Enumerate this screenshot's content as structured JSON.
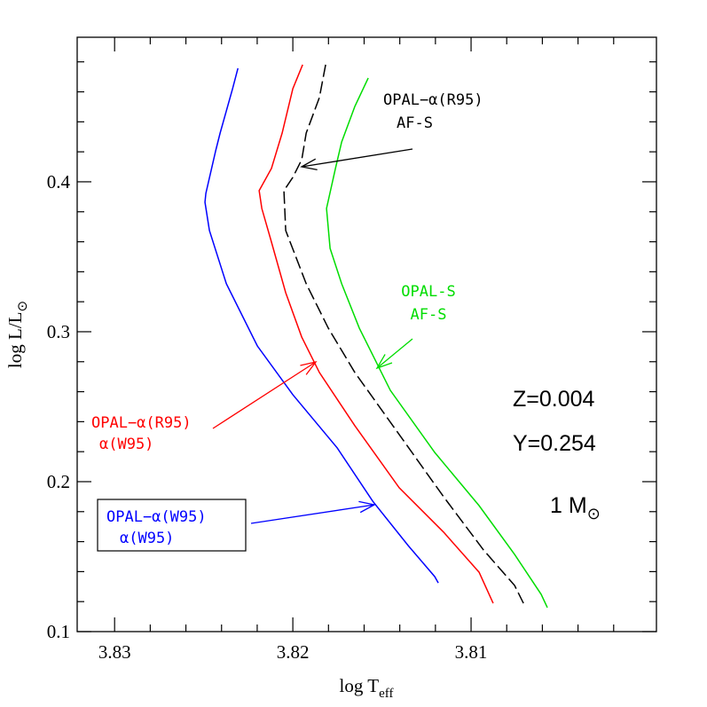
{
  "chart_data": {
    "type": "line",
    "x_label": [
      "log T",
      "eff"
    ],
    "y_label": [
      "log L/L",
      "⊙"
    ],
    "xlim": [
      3.8321,
      3.7996
    ],
    "ylim": [
      0.1,
      0.4964
    ],
    "xticks": [
      3.83,
      3.82,
      3.81
    ],
    "yticks": [
      0.1,
      0.2,
      0.3,
      0.4
    ],
    "xminorticks": [
      3.828,
      3.826,
      3.824,
      3.822,
      3.818,
      3.816,
      3.814,
      3.812,
      3.808,
      3.806,
      3.804,
      3.802
    ],
    "yminorticks": [
      0.12,
      0.14,
      0.16,
      0.18,
      0.22,
      0.24,
      0.26,
      0.28,
      0.32,
      0.34,
      0.36,
      0.38,
      0.42,
      0.44,
      0.46,
      0.48
    ],
    "series": [
      {
        "color": "#0000ff",
        "x": [
          3.82308,
          3.82338,
          3.82408,
          3.82433,
          3.82488,
          3.82493,
          3.82468,
          3.82373,
          3.82199,
          3.82,
          3.81751,
          3.81552,
          3.81353,
          3.81204,
          3.81184
        ],
        "values": [
          0.4757,
          0.4621,
          0.4325,
          0.4207,
          0.3923,
          0.3864,
          0.3675,
          0.332,
          0.2905,
          0.258,
          0.2225,
          0.187,
          0.1574,
          0.1367,
          0.1325
        ]
      },
      {
        "color": "#ff0000",
        "x": [
          3.81945,
          3.82,
          3.8206,
          3.8212,
          3.82189,
          3.82174,
          3.82124,
          3.8204,
          3.8195,
          3.81851,
          3.81652,
          3.81403,
          3.81154,
          3.80955,
          3.80876
        ],
        "values": [
          0.4781,
          0.4621,
          0.4325,
          0.4089,
          0.3941,
          0.3822,
          0.3615,
          0.326,
          0.2964,
          0.2728,
          0.2373,
          0.1959,
          0.1663,
          0.1396,
          0.1189
        ]
      },
      {
        "color": "#000000",
        "linestyle": "dashed",
        "x": [
          3.81816,
          3.81851,
          3.81925,
          3.8195,
          3.82,
          3.8205,
          3.8204,
          3.81925,
          3.81801,
          3.81652,
          3.81403,
          3.81154,
          3.8093,
          3.80756,
          3.80706
        ],
        "values": [
          0.4781,
          0.4562,
          0.4325,
          0.4148,
          0.403,
          0.3941,
          0.3675,
          0.332,
          0.3024,
          0.2728,
          0.2314,
          0.1899,
          0.1544,
          0.1308,
          0.1189
        ]
      },
      {
        "color": "#00dd00",
        "x": [
          3.81577,
          3.81652,
          3.81726,
          3.81761,
          3.81811,
          3.81791,
          3.81726,
          3.81627,
          3.81453,
          3.81204,
          3.80955,
          3.80756,
          3.80607,
          3.80572
        ],
        "values": [
          0.4692,
          0.4503,
          0.4266,
          0.4089,
          0.3822,
          0.3556,
          0.332,
          0.3024,
          0.2609,
          0.2195,
          0.184,
          0.1515,
          0.1249,
          0.116
        ]
      }
    ],
    "annotations": [
      {
        "lines": [
          "OPAL−α(R95)",
          "AF-S"
        ],
        "color": "#000000"
      },
      {
        "lines": [
          "OPAL-S",
          "AF-S"
        ],
        "color": "#00dd00"
      },
      {
        "lines": [
          "OPAL−α(R95)",
          "α(W95)"
        ],
        "color": "#ff0000"
      },
      {
        "lines": [
          "OPAL−α(W95)",
          "α(W95)"
        ],
        "color": "#0000ff"
      }
    ],
    "params": [
      "Z=0.004",
      "Y=0.254"
    ],
    "mass": [
      "1 M",
      "⊙"
    ]
  }
}
